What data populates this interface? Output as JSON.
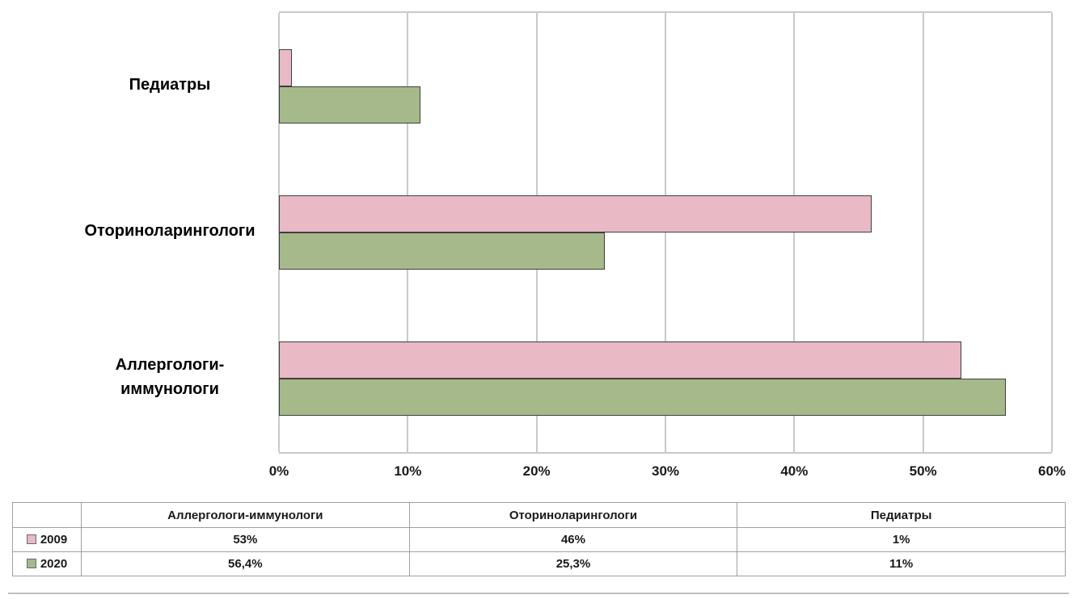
{
  "chart_data": {
    "type": "bar",
    "orientation": "horizontal",
    "title": "",
    "categories": [
      "Педиатры",
      "Оториноларингологи",
      "Аллергологи-иммунологи"
    ],
    "series": [
      {
        "name": "2009",
        "values": [
          1,
          46,
          53
        ],
        "color": "#e9b9c5",
        "border": "#3f3f3f"
      },
      {
        "name": "2020",
        "values": [
          11,
          25.3,
          56.4
        ],
        "color": "#a6b98a",
        "border": "#3f3f3f"
      }
    ],
    "xlim": [
      0,
      60
    ],
    "x_ticks": [
      "0%",
      "10%",
      "20%",
      "30%",
      "40%",
      "50%",
      "60%"
    ],
    "grid": true,
    "gridline_color": "#c9c9c9",
    "legend_position": "table-below-left"
  },
  "table": {
    "headers": [
      "Аллергологи-иммунологи",
      "Оториноларингологи",
      "Педиатры"
    ],
    "rows": [
      {
        "legend": "2009",
        "cells": [
          "53%",
          "46%",
          "1%"
        ]
      },
      {
        "legend": "2020",
        "cells": [
          "56,4%",
          "25,3%",
          "11%"
        ]
      }
    ]
  }
}
